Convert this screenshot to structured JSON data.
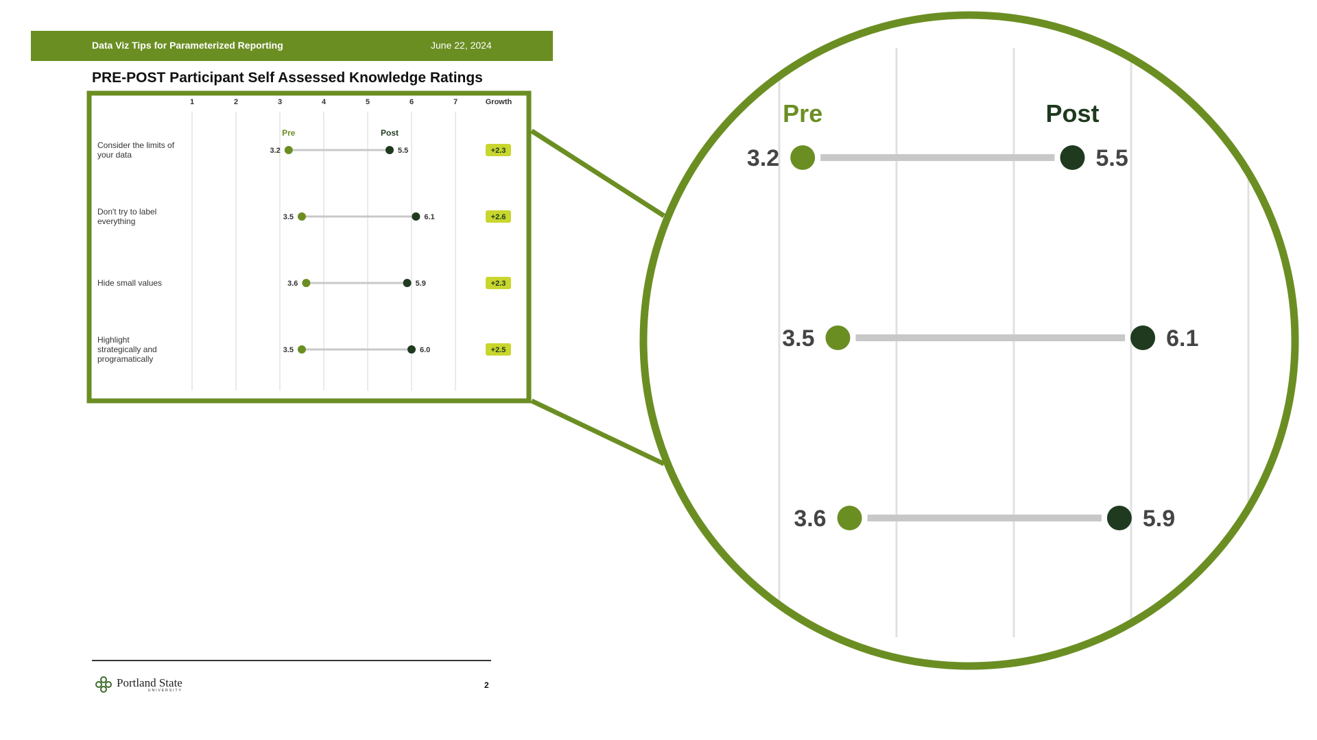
{
  "header": {
    "title": "Data Viz Tips for Parameterized Reporting",
    "date": "June 22, 2024"
  },
  "chart_data": {
    "type": "dumbbell",
    "title": "PRE-POST Participant Self Assessed Knowledge Ratings",
    "x_ticks": [
      "1",
      "2",
      "3",
      "4",
      "5",
      "6",
      "7"
    ],
    "xlim": [
      1,
      7
    ],
    "growth_header": "Growth",
    "legend": {
      "pre": "Pre",
      "post": "Post"
    },
    "rows": [
      {
        "label": "Consider the limits of your data",
        "pre": 3.2,
        "post": 5.5,
        "pre_label": "3.2",
        "post_label": "5.5",
        "growth": "+2.3"
      },
      {
        "label": "Don't try to label everything",
        "pre": 3.5,
        "post": 6.1,
        "pre_label": "3.5",
        "post_label": "6.1",
        "growth": "+2.6"
      },
      {
        "label": "Hide small values",
        "pre": 3.6,
        "post": 5.9,
        "pre_label": "3.6",
        "post_label": "5.9",
        "growth": "+2.3"
      },
      {
        "label": "Highlight strategically and programatically",
        "pre": 3.5,
        "post": 6.0,
        "pre_label": "3.5",
        "post_label": "6.0",
        "growth": "+2.5"
      }
    ],
    "colors": {
      "pre": "#6b8e23",
      "post": "#1f3a1f",
      "connector": "#c8c8c8",
      "growth_badge": "#c8d62e",
      "frame": "#6b8e23",
      "grid": "#e3e3e3"
    }
  },
  "zoom_callout": {
    "rows_shown": 3,
    "legend": {
      "pre": "Pre",
      "post": "Post"
    }
  },
  "footer": {
    "logo_name": "Portland State",
    "logo_sub": "UNIVERSITY",
    "page_number": "2"
  }
}
